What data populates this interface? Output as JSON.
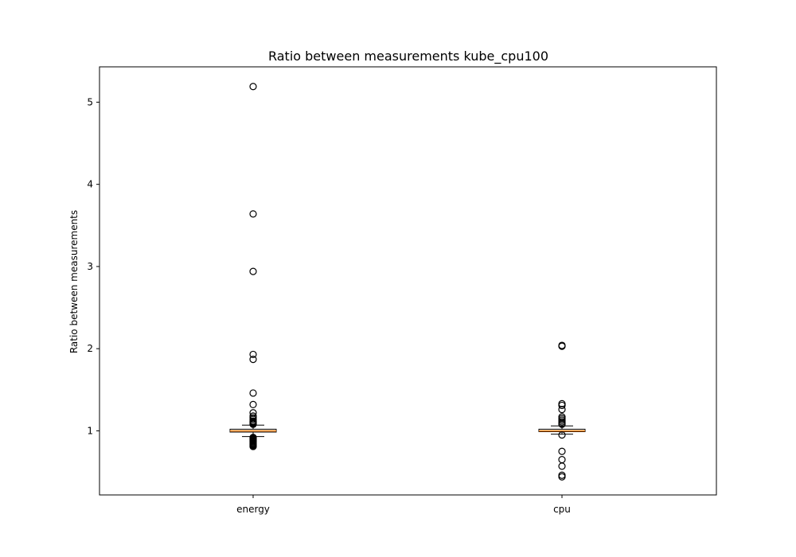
{
  "chart_data": {
    "type": "box",
    "title": "Ratio between measurements kube_cpu100",
    "xlabel": "",
    "ylabel": "Ratio between measurements",
    "ylim": [
      0.22,
      5.43
    ],
    "yticks": [
      1,
      2,
      3,
      4,
      5
    ],
    "grid": false,
    "categories": [
      "energy",
      "cpu"
    ],
    "boxes": [
      {
        "name": "energy",
        "q1": 0.985,
        "median": 1.0,
        "q3": 1.02,
        "whisker_low": 0.93,
        "whisker_high": 1.07,
        "outliers": [
          5.19,
          3.64,
          2.94,
          1.93,
          1.87,
          1.46,
          1.32,
          1.22,
          1.18,
          1.16,
          1.14,
          1.12,
          1.11,
          1.1,
          1.09,
          1.08,
          0.92,
          0.91,
          0.9,
          0.89,
          0.88,
          0.87,
          0.86,
          0.85,
          0.84,
          0.83,
          0.82,
          0.81
        ]
      },
      {
        "name": "cpu",
        "q1": 0.99,
        "median": 1.0,
        "q3": 1.02,
        "whisker_low": 0.96,
        "whisker_high": 1.06,
        "outliers": [
          2.04,
          2.03,
          1.33,
          1.31,
          1.26,
          1.17,
          1.15,
          1.13,
          1.11,
          1.09,
          1.08,
          0.95,
          0.75,
          0.65,
          0.57,
          0.46,
          0.44
        ]
      }
    ],
    "colors": {
      "median": "#ff7f0e",
      "box": "#000000",
      "axes": "#000000"
    }
  }
}
